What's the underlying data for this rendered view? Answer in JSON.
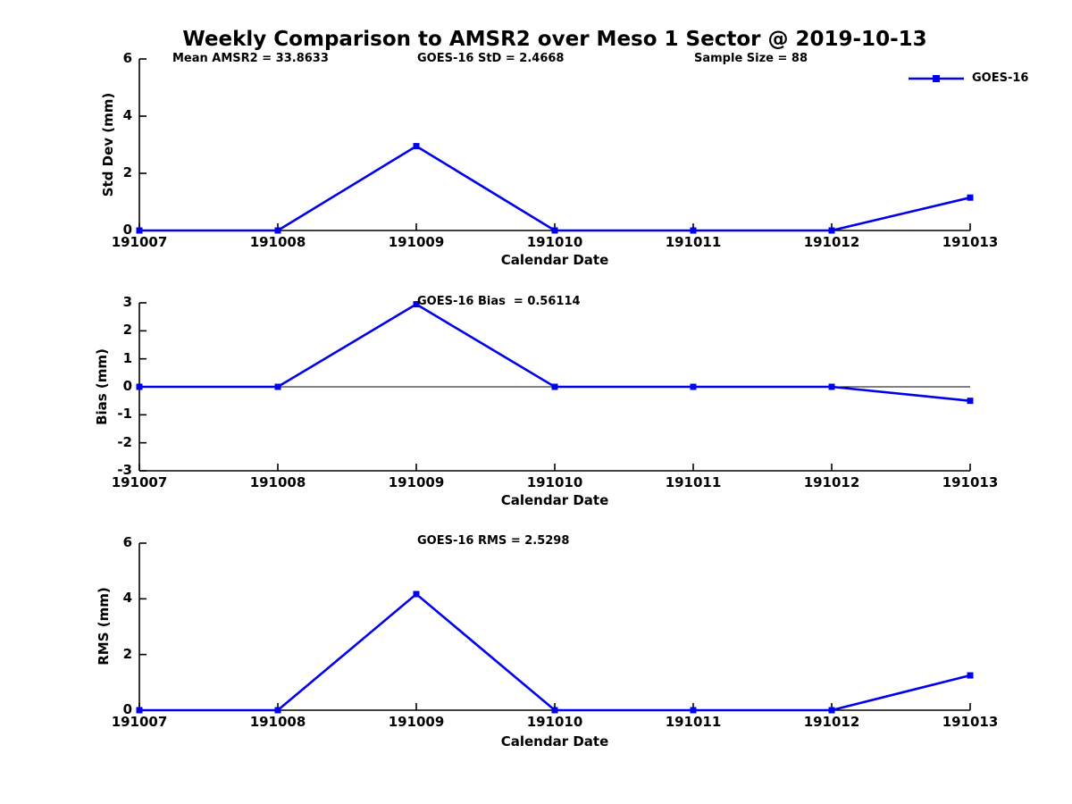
{
  "title": "Weekly Comparison to AMSR2 over Meso 1 Sector @ 2019-10-13",
  "legend": {
    "label": "GOES-16",
    "color": "#0000ee"
  },
  "colors": {
    "line": "#0000ee",
    "axis": "#000000",
    "zero_line": "#000000"
  },
  "chart_data": [
    {
      "type": "line",
      "name": "std-dev",
      "title": "",
      "ylabel": "Std Dev (mm)",
      "xlabel": "Calendar Date",
      "categories": [
        "191007",
        "191008",
        "191009",
        "191010",
        "191011",
        "191012",
        "191013"
      ],
      "series": [
        {
          "name": "GOES-16",
          "values": [
            0,
            0,
            2.95,
            0,
            0,
            0,
            1.15
          ]
        }
      ],
      "ylim": [
        0,
        6
      ],
      "yticks": [
        0,
        2,
        4,
        6
      ],
      "grid": false,
      "legend_position": "top-right-outside",
      "annotations": [
        {
          "text": "Mean AMSR2 = 33.8633"
        },
        {
          "text": "GOES-16 StD = 2.4668"
        },
        {
          "text": "Sample Size = 88"
        }
      ]
    },
    {
      "type": "line",
      "name": "bias",
      "title": "",
      "ylabel": "Bias (mm)",
      "xlabel": "Calendar Date",
      "categories": [
        "191007",
        "191008",
        "191009",
        "191010",
        "191011",
        "191012",
        "191013"
      ],
      "series": [
        {
          "name": "GOES-16",
          "values": [
            0,
            0,
            2.95,
            0,
            0,
            0,
            -0.5
          ]
        }
      ],
      "ylim": [
        -3,
        3
      ],
      "yticks": [
        3,
        2,
        1,
        0,
        -1,
        -2,
        -3
      ],
      "zero_line": true,
      "grid": false,
      "annotations": [
        {
          "text": "GOES-16 Bias  = 0.56114"
        }
      ]
    },
    {
      "type": "line",
      "name": "rms",
      "title": "",
      "ylabel": "RMS (mm)",
      "xlabel": "Calendar Date",
      "categories": [
        "191007",
        "191008",
        "191009",
        "191010",
        "191011",
        "191012",
        "191013"
      ],
      "series": [
        {
          "name": "GOES-16",
          "values": [
            0,
            0,
            4.17,
            0,
            0,
            0,
            1.25
          ]
        }
      ],
      "ylim": [
        0,
        6
      ],
      "yticks": [
        0,
        2,
        4,
        6
      ],
      "grid": false,
      "annotations": [
        {
          "text": "GOES-16 RMS = 2.5298"
        }
      ]
    }
  ]
}
